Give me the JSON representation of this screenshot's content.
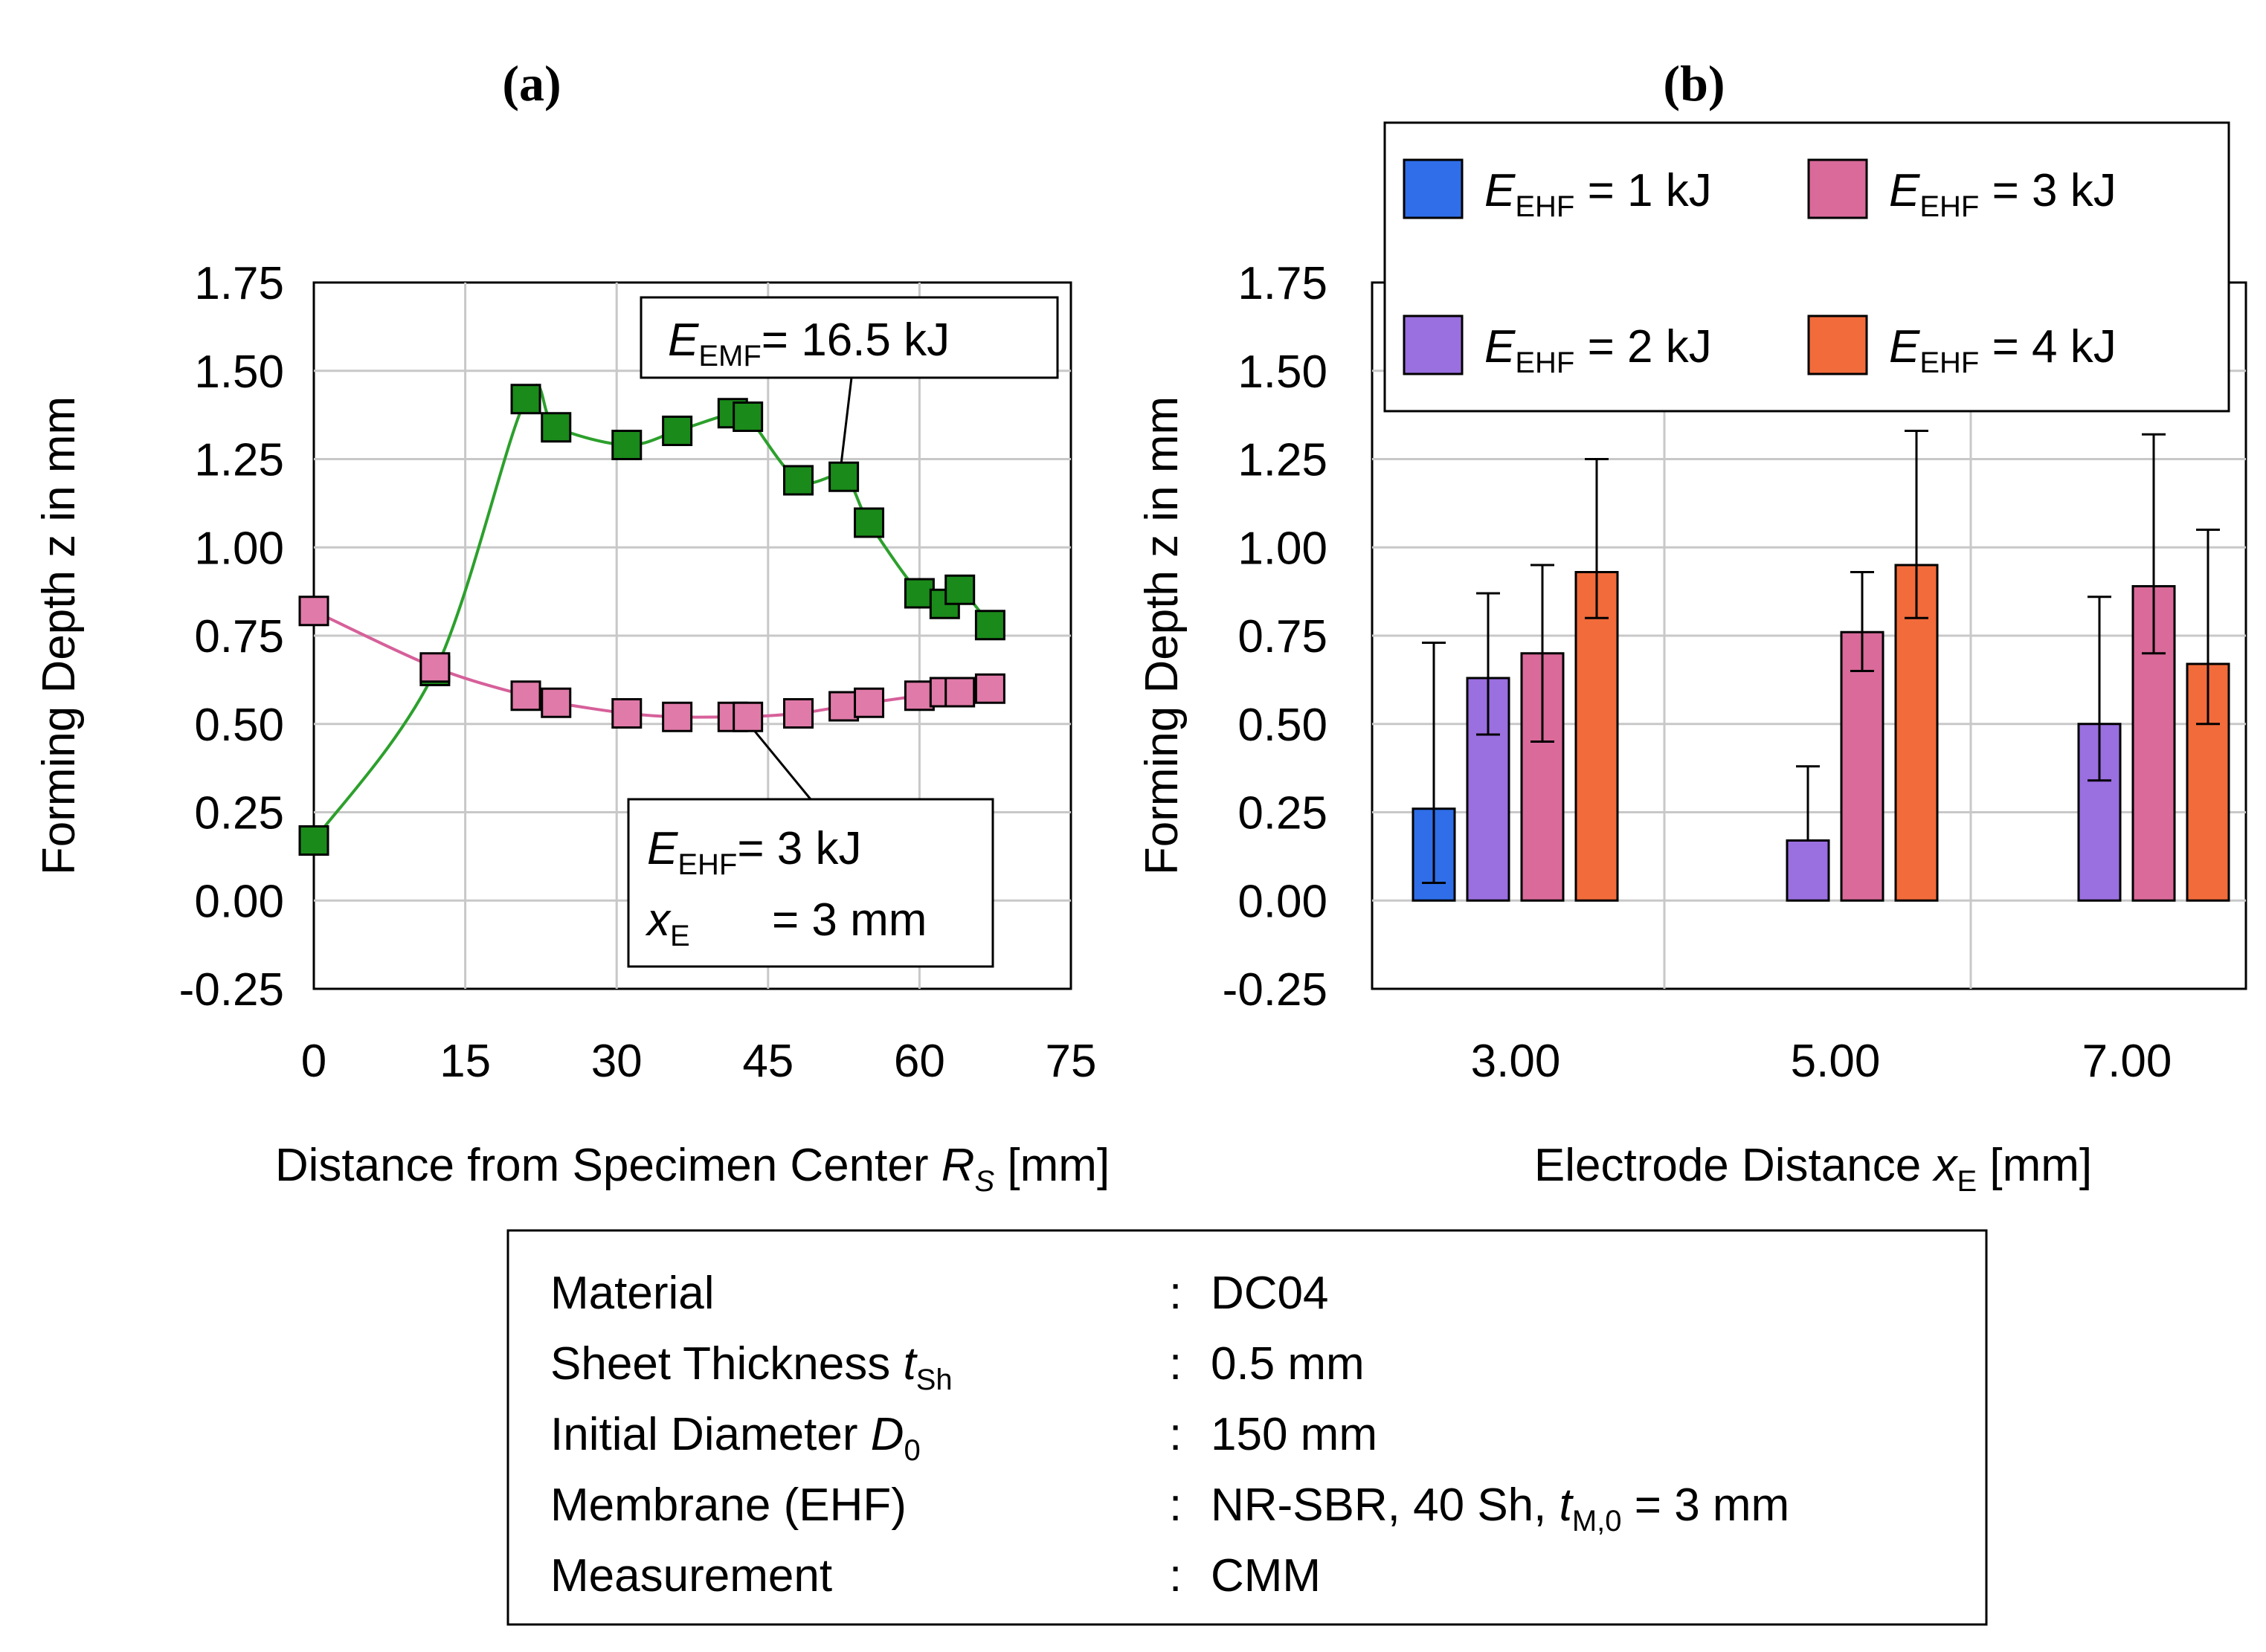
{
  "colors": {
    "emf": "#1a8a1a",
    "emf_line": "#2ca02c",
    "ehf": "#e07aa8",
    "ehf_line": "#d6609a",
    "e1": "#2f6ee8",
    "e2": "#9a6fe0",
    "e3": "#d96a9a",
    "e4": "#f26b3a",
    "grid": "#c8c8c8"
  },
  "chart_data": [
    {
      "type": "line",
      "panel_label": "a",
      "xlabel": "Distance from Specimen Center ",
      "xlabel_var": "R",
      "xlabel_sub": "S",
      "xlabel_unit": " [mm]",
      "ylabel": "Forming Depth z in mm",
      "xlim": [
        0,
        75
      ],
      "ylim": [
        -0.25,
        1.75
      ],
      "xticks": [
        "0",
        "15",
        "30",
        "45",
        "60",
        "75"
      ],
      "yticks": [
        "1.75",
        "1.50",
        "1.25",
        "1.00",
        "0.75",
        "0.50",
        "0.25",
        "0.00",
        "-0.25"
      ],
      "series": [
        {
          "name": "EMF 16.5 kJ",
          "label_var": "E",
          "label_sub": "EMF",
          "label_val": "= 16.5 kJ",
          "x": [
            0,
            12,
            21,
            24,
            31,
            36,
            41.5,
            43,
            48,
            52.5,
            55,
            60,
            62.5,
            64,
            67
          ],
          "y": [
            0.17,
            0.65,
            1.42,
            1.34,
            1.29,
            1.33,
            1.38,
            1.37,
            1.19,
            1.2,
            1.07,
            0.87,
            0.84,
            0.88,
            0.78
          ]
        },
        {
          "name": "EHF 3 kJ",
          "label_var": "E",
          "label_sub": "EHF",
          "label_val": "= 3 kJ",
          "label2_var": "x",
          "label2_sub": "E",
          "label2_val": "= 3 mm",
          "x": [
            0,
            12,
            21,
            24,
            31,
            36,
            41.5,
            43,
            48,
            52.5,
            55,
            60,
            62.5,
            64,
            67
          ],
          "y": [
            0.82,
            0.66,
            0.58,
            0.56,
            0.53,
            0.52,
            0.52,
            0.52,
            0.53,
            0.55,
            0.56,
            0.58,
            0.59,
            0.59,
            0.6
          ]
        }
      ]
    },
    {
      "type": "bar",
      "panel_label": "b",
      "xlabel": "Electrode Distance ",
      "xlabel_var": "x",
      "xlabel_sub": "E",
      "xlabel_unit": " [mm]",
      "ylabel": "Forming Depth z in mm",
      "ylim": [
        -0.25,
        1.75
      ],
      "yticks": [
        "1.75",
        "1.50",
        "1.25",
        "1.00",
        "0.75",
        "0.50",
        "0.25",
        "0.00",
        "-0.25"
      ],
      "categories": [
        "3.00",
        "5.00",
        "7.00"
      ],
      "series": [
        {
          "name": "E_EHF = 1 kJ",
          "legend_var": "E",
          "legend_sub": "EHF",
          "legend_val": "= 1 kJ",
          "values": [
            0.26,
            null,
            null
          ],
          "err_low": [
            0.05,
            null,
            null
          ],
          "err_high": [
            0.73,
            null,
            null
          ]
        },
        {
          "name": "E_EHF = 2 kJ",
          "legend_var": "E",
          "legend_sub": "EHF",
          "legend_val": "= 2 kJ",
          "values": [
            0.63,
            0.17,
            0.5
          ],
          "err_low": [
            0.47,
            null,
            0.34
          ],
          "err_high": [
            0.87,
            0.38,
            0.86
          ]
        },
        {
          "name": "E_EHF = 3 kJ",
          "legend_var": "E",
          "legend_sub": "EHF",
          "legend_val": "= 3 kJ",
          "values": [
            0.7,
            0.76,
            0.89
          ],
          "err_low": [
            0.45,
            0.65,
            0.7
          ],
          "err_high": [
            0.95,
            0.93,
            1.32
          ]
        },
        {
          "name": "E_EHF = 4 kJ",
          "legend_var": "E",
          "legend_sub": "EHF",
          "legend_val": "= 4 kJ",
          "values": [
            0.93,
            0.95,
            0.67
          ],
          "err_low": [
            0.8,
            0.8,
            0.5
          ],
          "err_high": [
            1.25,
            1.33,
            1.05
          ]
        }
      ]
    }
  ],
  "info_table": {
    "rows": [
      {
        "label": "Material",
        "label_var": "",
        "label_sub": "",
        "value": "DC04",
        "value_var": "",
        "value_sub": "",
        "value_tail": ""
      },
      {
        "label": "Sheet Thickness ",
        "label_var": "t",
        "label_sub": "Sh",
        "value": "0.5 mm",
        "value_var": "",
        "value_sub": "",
        "value_tail": ""
      },
      {
        "label": "Initial Diameter ",
        "label_var": "D",
        "label_sub": "0",
        "value": "150 mm",
        "value_var": "",
        "value_sub": "",
        "value_tail": ""
      },
      {
        "label": "Membrane (EHF)",
        "label_var": "",
        "label_sub": "",
        "value": "NR-SBR, 40 Sh, ",
        "value_var": "t",
        "value_sub": "M,0",
        "value_tail": " = 3 mm"
      },
      {
        "label": "Measurement",
        "label_var": "",
        "label_sub": "",
        "value": "CMM",
        "value_var": "",
        "value_sub": "",
        "value_tail": ""
      }
    ],
    "separator": ":"
  }
}
